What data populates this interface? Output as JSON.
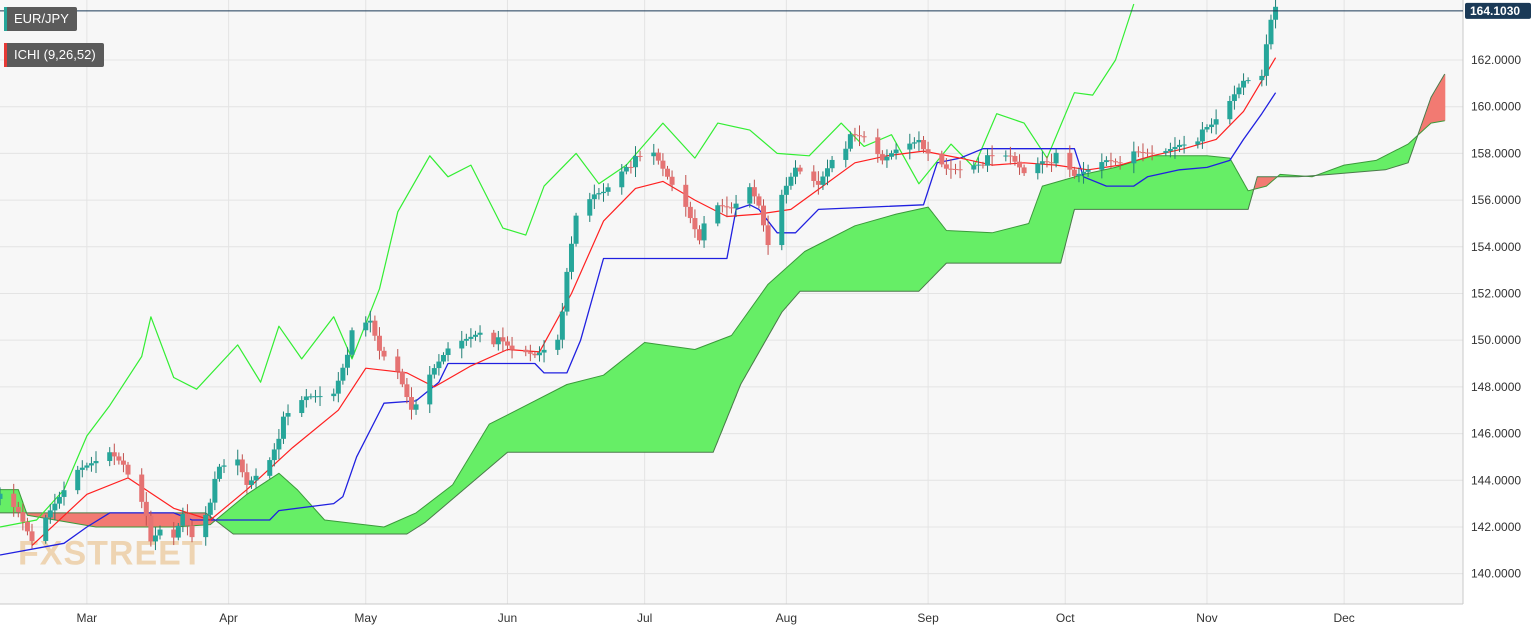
{
  "legend": {
    "symbol": "EUR/JPY",
    "indicator": "ICHI (9,26,52)",
    "symbol_color": "#26a69a",
    "indicator_color": "#e53935"
  },
  "watermark": "FXSTREET",
  "last_price": "164.1030",
  "colors": {
    "background": "#f7f7f7",
    "grid": "#e4e4e4",
    "up": "#26a69a",
    "down": "#e57373",
    "tenkan": "#ff2020",
    "kijun": "#2020e0",
    "chikou": "#33ee33",
    "cloud_bull": "#66ee66",
    "cloud_bear": "#f27a72",
    "last_price_line": "#1b3a57"
  },
  "chart_data": {
    "type": "candlestick",
    "symbol": "EUR/JPY",
    "indicator": "Ichimoku (9,26,52)",
    "ylim": [
      138.7,
      164.4
    ],
    "yticks": [
      140,
      142,
      144,
      146,
      148,
      150,
      152,
      154,
      156,
      158,
      160,
      162
    ],
    "ytick_labels": [
      "140.0000",
      "142.0000",
      "144.0000",
      "146.0000",
      "148.0000",
      "150.0000",
      "152.0000",
      "154.0000",
      "156.0000",
      "158.0000",
      "160.0000",
      "162.0000"
    ],
    "x_range": [
      "2023-02-10",
      "2023-12-27"
    ],
    "xticks": [
      {
        "date": "2023-03-01",
        "label": "Mar"
      },
      {
        "date": "2023-04-01",
        "label": "Apr"
      },
      {
        "date": "2023-05-01",
        "label": "May"
      },
      {
        "date": "2023-06-01",
        "label": "Jun"
      },
      {
        "date": "2023-07-01",
        "label": "Jul"
      },
      {
        "date": "2023-08-01",
        "label": "Aug"
      },
      {
        "date": "2023-09-01",
        "label": "Sep"
      },
      {
        "date": "2023-10-01",
        "label": "Oct"
      },
      {
        "date": "2023-11-01",
        "label": "Nov"
      },
      {
        "date": "2023-12-01",
        "label": "Dec"
      }
    ],
    "price_anchors": [
      [
        "2023-02-10",
        143.2
      ],
      [
        "2023-02-14",
        142.5
      ],
      [
        "2023-02-17",
        141.4
      ],
      [
        "2023-02-21",
        142.8
      ],
      [
        "2023-02-24",
        143.8
      ],
      [
        "2023-03-01",
        144.5
      ],
      [
        "2023-03-06",
        145.2
      ],
      [
        "2023-03-09",
        144.8
      ],
      [
        "2023-03-13",
        143.3
      ],
      [
        "2023-03-15",
        141.2
      ],
      [
        "2023-03-17",
        141.8
      ],
      [
        "2023-03-20",
        141.5
      ],
      [
        "2023-03-22",
        142.6
      ],
      [
        "2023-03-24",
        141.7
      ],
      [
        "2023-03-27",
        142.7
      ],
      [
        "2023-03-30",
        144.4
      ],
      [
        "2023-04-03",
        144.8
      ],
      [
        "2023-04-05",
        143.8
      ],
      [
        "2023-04-10",
        145.0
      ],
      [
        "2023-04-13",
        146.5
      ],
      [
        "2023-04-18",
        147.5
      ],
      [
        "2023-04-24",
        147.8
      ],
      [
        "2023-04-28",
        150.2
      ],
      [
        "2023-05-02",
        150.7
      ],
      [
        "2023-05-04",
        149.5
      ],
      [
        "2023-05-08",
        148.7
      ],
      [
        "2023-05-11",
        147.2
      ],
      [
        "2023-05-15",
        148.3
      ],
      [
        "2023-05-19",
        149.6
      ],
      [
        "2023-05-23",
        150.1
      ],
      [
        "2023-05-26",
        150.5
      ],
      [
        "2023-05-30",
        149.9
      ],
      [
        "2023-06-02",
        149.5
      ],
      [
        "2023-06-07",
        149.4
      ],
      [
        "2023-06-12",
        150.2
      ],
      [
        "2023-06-16",
        155.2
      ],
      [
        "2023-06-20",
        156.2
      ],
      [
        "2023-06-22",
        156.4
      ],
      [
        "2023-06-27",
        157.6
      ],
      [
        "2023-06-30",
        157.7
      ],
      [
        "2023-07-03",
        157.9
      ],
      [
        "2023-07-06",
        157.0
      ],
      [
        "2023-07-10",
        155.8
      ],
      [
        "2023-07-13",
        154.5
      ],
      [
        "2023-07-17",
        155.6
      ],
      [
        "2023-07-20",
        155.6
      ],
      [
        "2023-07-24",
        156.6
      ],
      [
        "2023-07-26",
        155.9
      ],
      [
        "2023-07-28",
        154.3
      ],
      [
        "2023-07-31",
        156.0
      ],
      [
        "2023-08-03",
        157.3
      ],
      [
        "2023-08-08",
        156.7
      ],
      [
        "2023-08-11",
        157.9
      ],
      [
        "2023-08-15",
        158.6
      ],
      [
        "2023-08-18",
        158.6
      ],
      [
        "2023-08-22",
        157.7
      ],
      [
        "2023-08-25",
        158.3
      ],
      [
        "2023-08-29",
        158.7
      ],
      [
        "2023-08-31",
        158.0
      ],
      [
        "2023-09-05",
        157.3
      ],
      [
        "2023-09-08",
        157.4
      ],
      [
        "2023-09-12",
        157.7
      ],
      [
        "2023-09-15",
        157.7
      ],
      [
        "2023-09-19",
        157.8
      ],
      [
        "2023-09-22",
        157.2
      ],
      [
        "2023-09-26",
        157.8
      ],
      [
        "2023-09-29",
        157.8
      ],
      [
        "2023-10-03",
        156.9
      ],
      [
        "2023-10-06",
        157.3
      ],
      [
        "2023-10-10",
        157.8
      ],
      [
        "2023-10-13",
        157.8
      ],
      [
        "2023-10-18",
        157.9
      ],
      [
        "2023-10-23",
        158.1
      ],
      [
        "2023-10-26",
        158.5
      ],
      [
        "2023-10-31",
        158.8
      ],
      [
        "2023-11-02",
        159.1
      ],
      [
        "2023-11-06",
        160.2
      ],
      [
        "2023-11-09",
        161.2
      ],
      [
        "2023-11-13",
        161.5
      ],
      [
        "2023-11-14",
        162.9
      ],
      [
        "2023-11-16",
        164.1
      ]
    ],
    "tenkan_sen": [
      [
        "2023-02-17",
        141.2
      ],
      [
        "2023-03-01",
        143.4
      ],
      [
        "2023-03-10",
        144.1
      ],
      [
        "2023-03-20",
        142.8
      ],
      [
        "2023-03-28",
        142.3
      ],
      [
        "2023-04-05",
        143.6
      ],
      [
        "2023-04-15",
        145.4
      ],
      [
        "2023-04-25",
        147.0
      ],
      [
        "2023-05-01",
        148.8
      ],
      [
        "2023-05-10",
        148.6
      ],
      [
        "2023-05-16",
        148.0
      ],
      [
        "2023-05-24",
        148.9
      ],
      [
        "2023-06-01",
        149.6
      ],
      [
        "2023-06-08",
        149.5
      ],
      [
        "2023-06-15",
        152.0
      ],
      [
        "2023-06-22",
        155.1
      ],
      [
        "2023-06-29",
        156.5
      ],
      [
        "2023-07-05",
        156.8
      ],
      [
        "2023-07-12",
        156.0
      ],
      [
        "2023-07-19",
        155.3
      ],
      [
        "2023-07-26",
        155.4
      ],
      [
        "2023-08-02",
        155.6
      ],
      [
        "2023-08-09",
        156.6
      ],
      [
        "2023-08-16",
        157.6
      ],
      [
        "2023-08-23",
        157.9
      ],
      [
        "2023-08-31",
        158.1
      ],
      [
        "2023-09-08",
        157.8
      ],
      [
        "2023-09-15",
        157.5
      ],
      [
        "2023-09-22",
        157.6
      ],
      [
        "2023-09-29",
        157.5
      ],
      [
        "2023-10-06",
        157.3
      ],
      [
        "2023-10-13",
        157.5
      ],
      [
        "2023-10-20",
        157.9
      ],
      [
        "2023-10-27",
        158.2
      ],
      [
        "2023-11-03",
        158.6
      ],
      [
        "2023-11-09",
        159.8
      ],
      [
        "2023-11-16",
        162.1
      ]
    ],
    "kijun_sen": [
      [
        "2023-02-10",
        140.8
      ],
      [
        "2023-02-24",
        141.3
      ],
      [
        "2023-03-01",
        142.0
      ],
      [
        "2023-03-06",
        142.6
      ],
      [
        "2023-03-20",
        142.6
      ],
      [
        "2023-03-24",
        142.3
      ],
      [
        "2023-04-10",
        142.3
      ],
      [
        "2023-04-12",
        142.7
      ],
      [
        "2023-04-24",
        143.0
      ],
      [
        "2023-04-26",
        143.3
      ],
      [
        "2023-04-29",
        145.0
      ],
      [
        "2023-05-05",
        147.3
      ],
      [
        "2023-05-12",
        147.4
      ],
      [
        "2023-05-17",
        148.2
      ],
      [
        "2023-05-19",
        149.0
      ],
      [
        "2023-06-07",
        149.0
      ],
      [
        "2023-06-09",
        148.6
      ],
      [
        "2023-06-14",
        148.6
      ],
      [
        "2023-06-17",
        150.0
      ],
      [
        "2023-06-22",
        153.5
      ],
      [
        "2023-07-19",
        153.5
      ],
      [
        "2023-07-21",
        155.6
      ],
      [
        "2023-07-24",
        155.8
      ],
      [
        "2023-07-26",
        155.6
      ],
      [
        "2023-07-30",
        154.6
      ],
      [
        "2023-08-03",
        154.6
      ],
      [
        "2023-08-08",
        155.6
      ],
      [
        "2023-08-31",
        155.8
      ],
      [
        "2023-09-03",
        157.6
      ],
      [
        "2023-09-08",
        157.8
      ],
      [
        "2023-09-13",
        158.2
      ],
      [
        "2023-10-03",
        158.2
      ],
      [
        "2023-10-05",
        157.0
      ],
      [
        "2023-10-10",
        156.6
      ],
      [
        "2023-10-16",
        156.6
      ],
      [
        "2023-10-19",
        157.0
      ],
      [
        "2023-10-26",
        157.3
      ],
      [
        "2023-11-01",
        157.4
      ],
      [
        "2023-11-06",
        157.7
      ],
      [
        "2023-11-09",
        158.6
      ],
      [
        "2023-11-13",
        159.7
      ],
      [
        "2023-11-16",
        160.6
      ]
    ],
    "chikou_span": [
      [
        "2023-02-10",
        142.0
      ],
      [
        "2023-02-18",
        142.3
      ],
      [
        "2023-02-24",
        143.6
      ],
      [
        "2023-03-01",
        145.9
      ],
      [
        "2023-03-06",
        147.2
      ],
      [
        "2023-03-13",
        149.3
      ],
      [
        "2023-03-15",
        151.0
      ],
      [
        "2023-03-20",
        148.4
      ],
      [
        "2023-03-25",
        147.9
      ],
      [
        "2023-04-03",
        149.8
      ],
      [
        "2023-04-08",
        148.2
      ],
      [
        "2023-04-12",
        150.6
      ],
      [
        "2023-04-17",
        149.2
      ],
      [
        "2023-04-24",
        151.0
      ],
      [
        "2023-04-28",
        149.2
      ],
      [
        "2023-05-04",
        152.2
      ],
      [
        "2023-05-08",
        155.5
      ],
      [
        "2023-05-15",
        157.9
      ],
      [
        "2023-05-19",
        157.0
      ],
      [
        "2023-05-24",
        157.5
      ],
      [
        "2023-05-31",
        154.8
      ],
      [
        "2023-06-05",
        154.5
      ],
      [
        "2023-06-09",
        156.6
      ],
      [
        "2023-06-16",
        158.0
      ],
      [
        "2023-06-21",
        156.7
      ],
      [
        "2023-06-27",
        157.5
      ],
      [
        "2023-07-05",
        159.3
      ],
      [
        "2023-07-12",
        157.8
      ],
      [
        "2023-07-17",
        159.3
      ],
      [
        "2023-07-24",
        159.0
      ],
      [
        "2023-07-30",
        158.0
      ],
      [
        "2023-08-06",
        157.9
      ],
      [
        "2023-08-13",
        159.3
      ],
      [
        "2023-08-18",
        158.3
      ],
      [
        "2023-08-24",
        158.8
      ],
      [
        "2023-08-30",
        156.7
      ],
      [
        "2023-09-06",
        158.4
      ],
      [
        "2023-09-11",
        157.4
      ],
      [
        "2023-09-16",
        159.7
      ],
      [
        "2023-09-22",
        159.3
      ],
      [
        "2023-09-27",
        157.8
      ],
      [
        "2023-10-03",
        160.6
      ],
      [
        "2023-10-07",
        160.5
      ],
      [
        "2023-10-12",
        162.0
      ],
      [
        "2023-10-16",
        164.4
      ]
    ],
    "senkou_span_a": [
      [
        "2023-02-10",
        143.6
      ],
      [
        "2023-02-14",
        143.6
      ],
      [
        "2023-02-16",
        142.5
      ],
      [
        "2023-03-03",
        142.0
      ],
      [
        "2023-03-20",
        142.0
      ],
      [
        "2023-03-28",
        142.1
      ],
      [
        "2023-04-05",
        143.4
      ],
      [
        "2023-04-12",
        144.3
      ],
      [
        "2023-04-16",
        143.6
      ],
      [
        "2023-04-22",
        142.3
      ],
      [
        "2023-05-05",
        142.0
      ],
      [
        "2023-05-12",
        142.6
      ],
      [
        "2023-05-20",
        143.8
      ],
      [
        "2023-05-28",
        146.4
      ],
      [
        "2023-06-05",
        147.2
      ],
      [
        "2023-06-14",
        148.1
      ],
      [
        "2023-06-22",
        148.5
      ],
      [
        "2023-07-01",
        149.9
      ],
      [
        "2023-07-12",
        149.6
      ],
      [
        "2023-07-20",
        150.2
      ],
      [
        "2023-07-28",
        152.4
      ],
      [
        "2023-08-05",
        153.8
      ],
      [
        "2023-08-16",
        154.9
      ],
      [
        "2023-08-25",
        155.4
      ],
      [
        "2023-09-01",
        155.7
      ],
      [
        "2023-09-05",
        154.7
      ],
      [
        "2023-09-15",
        154.6
      ],
      [
        "2023-09-23",
        155.0
      ],
      [
        "2023-09-26",
        156.6
      ],
      [
        "2023-10-05",
        157.1
      ],
      [
        "2023-10-12",
        157.4
      ],
      [
        "2023-10-20",
        157.9
      ],
      [
        "2023-11-01",
        157.9
      ],
      [
        "2023-11-06",
        157.8
      ],
      [
        "2023-11-10",
        156.4
      ],
      [
        "2023-11-14",
        156.6
      ],
      [
        "2023-11-17",
        157.1
      ],
      [
        "2023-11-24",
        157.0
      ],
      [
        "2023-12-01",
        157.5
      ],
      [
        "2023-12-08",
        157.7
      ],
      [
        "2023-12-15",
        158.4
      ],
      [
        "2023-12-20",
        159.3
      ],
      [
        "2023-12-23",
        159.4
      ]
    ],
    "senkou_span_b": [
      [
        "2023-02-10",
        142.6
      ],
      [
        "2023-03-27",
        142.6
      ],
      [
        "2023-04-02",
        141.7
      ],
      [
        "2023-05-10",
        141.7
      ],
      [
        "2023-05-14",
        142.2
      ],
      [
        "2023-06-01",
        145.2
      ],
      [
        "2023-07-16",
        145.2
      ],
      [
        "2023-07-22",
        148.1
      ],
      [
        "2023-07-31",
        151.2
      ],
      [
        "2023-08-04",
        152.1
      ],
      [
        "2023-08-30",
        152.1
      ],
      [
        "2023-09-05",
        153.3
      ],
      [
        "2023-09-30",
        153.3
      ],
      [
        "2023-10-03",
        155.6
      ],
      [
        "2023-11-10",
        155.6
      ],
      [
        "2023-11-12",
        157.0
      ],
      [
        "2023-11-21",
        157.0
      ],
      [
        "2023-11-28",
        157.1
      ],
      [
        "2023-12-10",
        157.3
      ],
      [
        "2023-12-15",
        157.6
      ],
      [
        "2023-12-20",
        160.4
      ],
      [
        "2023-12-23",
        161.4
      ]
    ]
  }
}
